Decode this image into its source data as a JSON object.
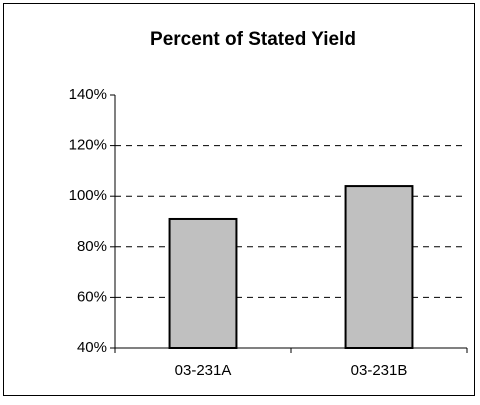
{
  "chart_data": {
    "type": "bar",
    "title": "Percent of Stated Yield",
    "categories": [
      "03-231A",
      "03-231B"
    ],
    "values": [
      91,
      104
    ],
    "color": "#c0c0c0",
    "ylim": [
      40,
      140
    ],
    "yticks": [
      {
        "value": 40,
        "label": "40%"
      },
      {
        "value": 60,
        "label": "60%"
      },
      {
        "value": 80,
        "label": "80%"
      },
      {
        "value": 100,
        "label": "100%"
      },
      {
        "value": 120,
        "label": "120%"
      },
      {
        "value": 140,
        "label": "140%"
      }
    ],
    "grid": true
  }
}
